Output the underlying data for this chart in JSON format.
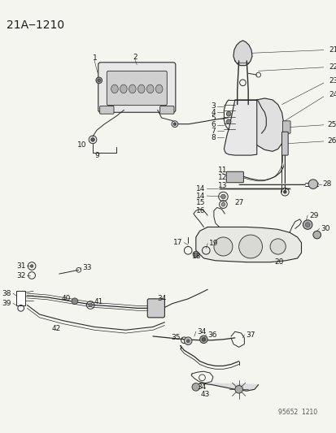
{
  "title": "21A‒1210",
  "footer": "95652  1210",
  "bg_color": "#f5f5f0",
  "line_color": "#2a2a2a",
  "text_color": "#1a1a1a",
  "title_fontsize": 10,
  "label_fontsize": 6.5,
  "footer_fontsize": 5.5,
  "fig_width": 4.14,
  "fig_height": 5.33,
  "dpi": 100
}
